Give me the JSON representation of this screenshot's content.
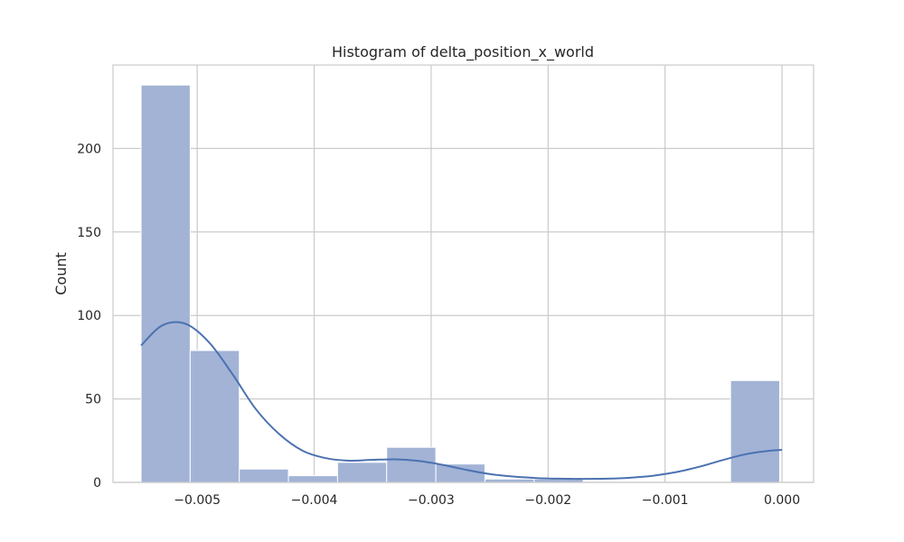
{
  "chart_data": {
    "type": "bar",
    "subtype": "histogram",
    "title": "Histogram of delta_position_x_world",
    "xlabel": "",
    "ylabel": "Count",
    "xlim": [
      -0.00572,
      0.00027
    ],
    "ylim": [
      0,
      250
    ],
    "xticks": [
      -0.005,
      -0.004,
      -0.003,
      -0.002,
      -0.001,
      0.0
    ],
    "xtick_labels": [
      "−0.005",
      "−0.004",
      "−0.003",
      "−0.002",
      "−0.001",
      "0.000"
    ],
    "yticks": [
      0,
      50,
      100,
      150,
      200
    ],
    "ytick_labels": [
      "0",
      "50",
      "100",
      "150",
      "200"
    ],
    "grid": true,
    "bin_edges": [
      -0.00548,
      -0.00506,
      -0.00464,
      -0.00422,
      -0.0038,
      -0.00338,
      -0.00296,
      -0.00254,
      -0.00212,
      -0.0017,
      -0.00128,
      -0.00086,
      -0.00044,
      -2e-05
    ],
    "counts": [
      238,
      79,
      8,
      4,
      12,
      21,
      11,
      2,
      2,
      0,
      0,
      0,
      61
    ],
    "kde": {
      "x": [
        -0.00548,
        -0.0053,
        -0.0051,
        -0.0049,
        -0.0047,
        -0.0045,
        -0.0043,
        -0.0041,
        -0.0039,
        -0.0037,
        -0.0035,
        -0.0033,
        -0.0031,
        -0.0029,
        -0.0027,
        -0.0025,
        -0.0023,
        -0.0021,
        -0.0019,
        -0.0017,
        -0.0015,
        -0.0013,
        -0.0011,
        -0.0009,
        -0.0007,
        -0.0005,
        -0.0003,
        -0.0001,
        0.0
      ],
      "y": [
        82,
        94,
        95,
        84,
        65,
        44,
        29,
        19,
        14.5,
        13,
        13.5,
        13.8,
        12.8,
        10.5,
        7.5,
        5,
        3.5,
        2.6,
        2.2,
        2.1,
        2.2,
        2.8,
        4,
        6.2,
        9.5,
        13.5,
        17,
        19,
        19.5
      ]
    },
    "colors": {
      "bar_fill": "#a2b3d6",
      "bar_edge": "#ffffff",
      "kde_line": "#4c72b0",
      "grid": "#cccccc",
      "frame": "#cccccc",
      "text": "#262626"
    }
  }
}
